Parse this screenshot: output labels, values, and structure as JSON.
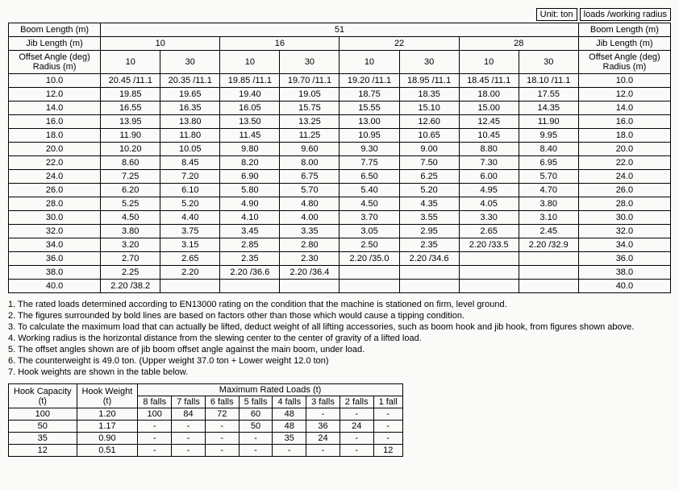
{
  "unit": {
    "label": "Unit: ton",
    "legend": "loads /working radius"
  },
  "headers": {
    "boomLength": "Boom Length (m)",
    "jibLength": "Jib Length (m)",
    "offsetAngle": "Offset Angle (deg)",
    "radius": "Radius (m)",
    "boomValue": "51",
    "jibValues": [
      "10",
      "16",
      "22",
      "28"
    ],
    "offsetValues": [
      "10",
      "30",
      "10",
      "30",
      "10",
      "30",
      "10",
      "30"
    ]
  },
  "rows": [
    {
      "r": "10.0",
      "c": [
        "20.45 /11.1",
        "20.35 /11.1",
        "19.85 /11.1",
        "19.70 /11.1",
        "19.20 /11.1",
        "18.95 /11.1",
        "18.45 /11.1",
        "18.10 /11.1"
      ]
    },
    {
      "r": "12.0",
      "c": [
        "19.85",
        "19.65",
        "19.40",
        "19.05",
        "18.75",
        "18.35",
        "18.00",
        "17.55"
      ]
    },
    {
      "r": "14.0",
      "c": [
        "16.55",
        "16.35",
        "16.05",
        "15.75",
        "15.55",
        "15.10",
        "15.00",
        "14.35"
      ]
    },
    {
      "r": "16.0",
      "c": [
        "13.95",
        "13.80",
        "13.50",
        "13.25",
        "13.00",
        "12.60",
        "12.45",
        "11.90"
      ]
    },
    {
      "r": "18.0",
      "c": [
        "11.90",
        "11.80",
        "11.45",
        "11.25",
        "10.95",
        "10.65",
        "10.45",
        "9.95"
      ]
    },
    {
      "r": "20.0",
      "c": [
        "10.20",
        "10.05",
        "9.80",
        "9.60",
        "9.30",
        "9.00",
        "8.80",
        "8.40"
      ]
    },
    {
      "r": "22.0",
      "c": [
        "8.60",
        "8.45",
        "8.20",
        "8.00",
        "7.75",
        "7.50",
        "7.30",
        "6.95"
      ]
    },
    {
      "r": "24.0",
      "c": [
        "7.25",
        "7.20",
        "6.90",
        "6.75",
        "6.50",
        "6.25",
        "6.00",
        "5.70"
      ]
    },
    {
      "r": "26.0",
      "c": [
        "6.20",
        "6.10",
        "5.80",
        "5.70",
        "5.40",
        "5.20",
        "4.95",
        "4.70"
      ]
    },
    {
      "r": "28.0",
      "c": [
        "5.25",
        "5.20",
        "4.90",
        "4.80",
        "4.50",
        "4.35",
        "4.05",
        "3.80"
      ]
    },
    {
      "r": "30.0",
      "c": [
        "4.50",
        "4.40",
        "4.10",
        "4.00",
        "3.70",
        "3.55",
        "3.30",
        "3.10"
      ]
    },
    {
      "r": "32.0",
      "c": [
        "3.80",
        "3.75",
        "3.45",
        "3.35",
        "3.05",
        "2.95",
        "2.65",
        "2.45"
      ]
    },
    {
      "r": "34.0",
      "c": [
        "3.20",
        "3.15",
        "2.85",
        "2.80",
        "2.50",
        "2.35",
        "2.20 /33.5",
        "2.20 /32.9"
      ]
    },
    {
      "r": "36.0",
      "c": [
        "2.70",
        "2.65",
        "2.35",
        "2.30",
        "2.20 /35.0",
        "2.20 /34.6",
        "",
        ""
      ]
    },
    {
      "r": "38.0",
      "c": [
        "2.25",
        "2.20",
        "2.20 /36.6",
        "2.20 /36.4",
        "",
        "",
        "",
        ""
      ]
    },
    {
      "r": "40.0",
      "c": [
        "2.20 /38.2",
        "",
        "",
        "",
        "",
        "",
        "",
        ""
      ]
    }
  ],
  "notes": [
    "1. The rated loads determined according to EN13000 rating on the condition that the machine is stationed on firm, level ground.",
    "2. The figures surrounded by bold lines are based on factors other than those which would cause a tipping condition.",
    "3. To calculate the maximum load that can actually be lifted, deduct weight of all lifting accessories, such as boom hook and jib hook, from figures shown above.",
    "4. Working radius is the horizontal distance from the slewing center to the center of gravity of a lifted load.",
    "5. The offset angles shown are of jib boom offset angle against the main boom, under load.",
    "6. The counterweight is 49.0 ton. (Upper weight 37.0 ton + Lower weight 12.0 ton)",
    "7. Hook weights are shown in the table below."
  ],
  "hookTable": {
    "headers": {
      "hookCap": "Hook Capacity\n(t)",
      "hookWt": "Hook Weight\n(t)",
      "maxLoads": "Maximum Rated Loads (t)",
      "falls": [
        "8 falls",
        "7 falls",
        "6 falls",
        "5 falls",
        "4 falls",
        "3 falls",
        "2 falls",
        "1 fall"
      ]
    },
    "rows": [
      {
        "cap": "100",
        "wt": "1.20",
        "c": [
          "100",
          "84",
          "72",
          "60",
          "48",
          "-",
          "-",
          "-"
        ]
      },
      {
        "cap": "50",
        "wt": "1.17",
        "c": [
          "-",
          "-",
          "-",
          "50",
          "48",
          "36",
          "24",
          "-"
        ]
      },
      {
        "cap": "35",
        "wt": "0.90",
        "c": [
          "-",
          "-",
          "-",
          "-",
          "35",
          "24",
          "-",
          "-"
        ]
      },
      {
        "cap": "12",
        "wt": "0.51",
        "c": [
          "-",
          "-",
          "-",
          "-",
          "-",
          "-",
          "-",
          "12"
        ]
      }
    ]
  }
}
